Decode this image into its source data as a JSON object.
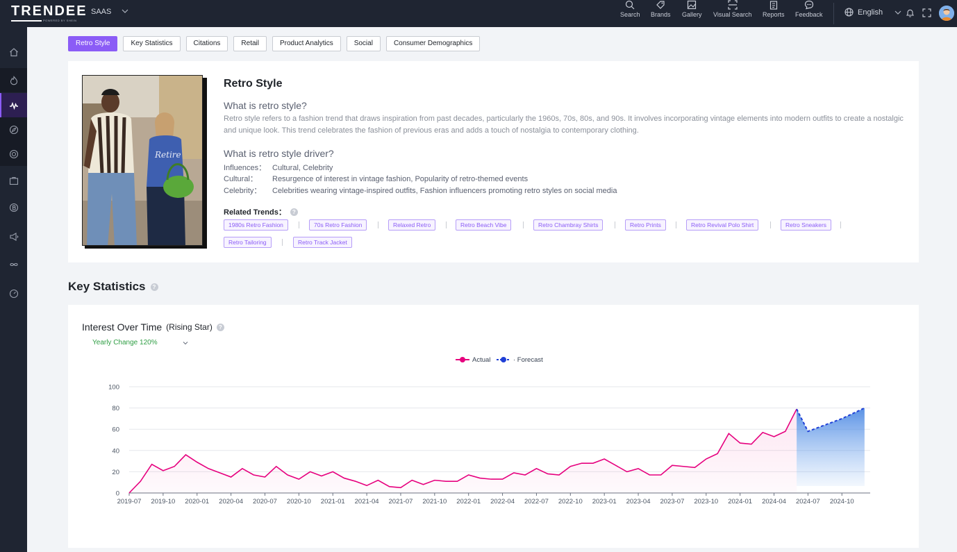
{
  "header": {
    "logo": "TRENDEE",
    "logo_sub": "POWERED BY SHEIN",
    "product": "SAAS",
    "nav": [
      {
        "label": "Search",
        "icon": "search-icon"
      },
      {
        "label": "Brands",
        "icon": "tag-icon"
      },
      {
        "label": "Gallery",
        "icon": "gallery-icon"
      },
      {
        "label": "Visual Search",
        "icon": "scan-icon"
      },
      {
        "label": "Reports",
        "icon": "clipboard-icon"
      },
      {
        "label": "Feedback",
        "icon": "chat-icon"
      }
    ],
    "language": "English"
  },
  "sidebar": {
    "items": [
      {
        "icon": "home-icon"
      },
      {
        "icon": "fire-icon"
      },
      {
        "icon": "trend-icon"
      },
      {
        "icon": "compass-icon"
      },
      {
        "icon": "target-icon"
      },
      {
        "icon": "briefcase-icon"
      },
      {
        "icon": "brand-b-icon"
      },
      {
        "icon": "megaphone-icon"
      },
      {
        "icon": "infinity-icon"
      },
      {
        "icon": "gauge-icon"
      }
    ]
  },
  "tabs": [
    "Retro Style",
    "Key Statistics",
    "Citations",
    "Retail",
    "Product Analytics",
    "Social",
    "Consumer Demographics"
  ],
  "trend": {
    "title": "Retro Style",
    "q1": "What is retro style?",
    "a1": "Retro style refers to a fashion trend that draws inspiration from past decades, particularly the 1960s, 70s, 80s, and 90s. It involves incorporating vintage elements into modern outfits to create a nostalgic and unique look. This trend celebrates the fashion of previous eras and adds a touch of nostalgia to contemporary clothing.",
    "q2": "What is retro style driver?",
    "drivers": [
      {
        "key": "Influences：",
        "value": "Cultural, Celebrity"
      },
      {
        "key": "Cultural：",
        "value": "Resurgence of interest in vintage fashion, Popularity of retro-themed events"
      },
      {
        "key": "Celebrity：",
        "value": "Celebrities wearing vintage-inspired outfits, Fashion influencers promoting retro styles on social media"
      }
    ],
    "related_label": "Related Trends：",
    "related": [
      "1980s Retro Fashion",
      "70s Retro Fashion",
      "Relaxed Retro",
      "Retro Beach Vibe",
      "Retro Chambray Shirts",
      "Retro Prints",
      "Retro Revival Polo Shirt",
      "Retro Sneakers",
      "Retro Tailoring",
      "Retro Track Jacket"
    ]
  },
  "key_stats": {
    "title": "Key Statistics",
    "chart_title": "Interest Over Time",
    "chart_sub": "(Rising Star)",
    "yearly": "Yearly Change 120%"
  },
  "chart_data": {
    "type": "line",
    "legend": [
      "Actual",
      "Forecast"
    ],
    "legend_position": "top-center",
    "ylim": [
      0,
      100
    ],
    "yticks": [
      0,
      20,
      40,
      60,
      80,
      100
    ],
    "xticks": [
      "2019-07",
      "2019-10",
      "2020-01",
      "2020-04",
      "2020-07",
      "2020-10",
      "2021-01",
      "2021-04",
      "2021-07",
      "2021-10",
      "2022-01",
      "2022-04",
      "2022-07",
      "2022-10",
      "2023-01",
      "2023-04",
      "2023-07",
      "2023-10",
      "2024-01",
      "2024-04",
      "2024-07",
      "2024-10"
    ],
    "series": [
      {
        "name": "Actual",
        "color": "#e6007e",
        "x": [
          "2019-07",
          "2019-08",
          "2019-09",
          "2019-10",
          "2019-11",
          "2019-12",
          "2020-01",
          "2020-02",
          "2020-03",
          "2020-04",
          "2020-05",
          "2020-06",
          "2020-07",
          "2020-08",
          "2020-09",
          "2020-10",
          "2020-11",
          "2020-12",
          "2021-01",
          "2021-02",
          "2021-03",
          "2021-04",
          "2021-05",
          "2021-06",
          "2021-07",
          "2021-08",
          "2021-09",
          "2021-10",
          "2021-11",
          "2021-12",
          "2022-01",
          "2022-02",
          "2022-03",
          "2022-04",
          "2022-05",
          "2022-06",
          "2022-07",
          "2022-08",
          "2022-09",
          "2022-10",
          "2022-11",
          "2022-12",
          "2023-01",
          "2023-02",
          "2023-03",
          "2023-04",
          "2023-05",
          "2023-06",
          "2023-07",
          "2023-08",
          "2023-09",
          "2023-10",
          "2023-11",
          "2023-12",
          "2024-01",
          "2024-02",
          "2024-03",
          "2024-04",
          "2024-05",
          "2024-06"
        ],
        "values": [
          0,
          11,
          27,
          21,
          25,
          36,
          29,
          23,
          19,
          15,
          23,
          17,
          15,
          25,
          17,
          13,
          20,
          16,
          20,
          14,
          11,
          7,
          12,
          6,
          5,
          12,
          8,
          12,
          11,
          11,
          17,
          14,
          13,
          13,
          19,
          17,
          23,
          18,
          17,
          25,
          28,
          28,
          32,
          26,
          20,
          23,
          17,
          17,
          26,
          25,
          24,
          32,
          37,
          56,
          47,
          46,
          57,
          53,
          58,
          79
        ]
      },
      {
        "name": "Forecast",
        "color": "#1f3fd6",
        "x": [
          "2024-06",
          "2024-07",
          "2024-08",
          "2024-09",
          "2024-10",
          "2024-11",
          "2024-12"
        ],
        "values": [
          79,
          58,
          62,
          66,
          70,
          75,
          80
        ]
      }
    ]
  }
}
